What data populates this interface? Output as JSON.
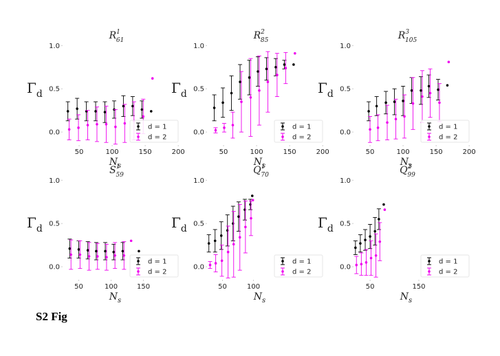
{
  "caption": "S2 Fig",
  "chart_data": [
    {
      "type": "errorbar",
      "title": "R",
      "title_sup": "1",
      "title_sub": "61",
      "ylabel": "Γ",
      "ylabel_sub": "d",
      "xlabel": "N",
      "xlabel_sub": "s",
      "xlim": [
        25,
        205
      ],
      "ylim": [
        -0.15,
        1.05
      ],
      "xticks": [
        50,
        100,
        150,
        200
      ],
      "yticks": [
        {
          "value": 0,
          "label": "0.0"
        },
        {
          "value": 0.5,
          "label": "0.5"
        },
        {
          "value": 1,
          "label": "1.0"
        }
      ],
      "legend": "lower right",
      "series": [
        {
          "name": "d = 1",
          "color": "#000000",
          "x": [
            33,
            47,
            61,
            75,
            89,
            103,
            117,
            131,
            145,
            159
          ],
          "values": [
            0.24,
            0.27,
            0.24,
            0.24,
            0.23,
            0.26,
            0.3,
            0.3,
            0.26,
            0.24
          ],
          "errors": [
            0.11,
            0.12,
            0.11,
            0.11,
            0.12,
            0.1,
            0.12,
            0.11,
            0.1,
            null
          ]
        },
        {
          "name": "d = 2",
          "color": "#ee00ee",
          "x": [
            35,
            49,
            63,
            77,
            91,
            105,
            119,
            133,
            147,
            161
          ],
          "values": [
            0.03,
            0.05,
            0.08,
            0.09,
            0.09,
            0.06,
            0.1,
            0.13,
            0.18,
            0.62
          ],
          "errors": [
            0.12,
            0.15,
            0.17,
            0.2,
            0.21,
            0.2,
            0.22,
            0.22,
            0.2,
            null
          ]
        }
      ]
    },
    {
      "type": "errorbar",
      "title": "R",
      "title_sup": "2",
      "title_sub": "85",
      "ylabel": "Γ",
      "ylabel_sub": "d",
      "xlabel": "N",
      "xlabel_sub": "s",
      "xlim": [
        25,
        205
      ],
      "ylim": [
        -0.15,
        1.05
      ],
      "xticks": [
        50,
        100,
        150,
        200
      ],
      "yticks": [
        {
          "value": 0,
          "label": "0.0"
        },
        {
          "value": 0.5,
          "label": "0.5"
        },
        {
          "value": 1,
          "label": "1.0"
        }
      ],
      "legend": "lower right",
      "series": [
        {
          "name": "d = 1",
          "color": "#000000",
          "x": [
            36,
            49,
            62,
            75,
            89,
            102,
            115,
            129,
            142,
            156
          ],
          "values": [
            0.28,
            0.34,
            0.45,
            0.58,
            0.63,
            0.7,
            0.73,
            0.75,
            0.78,
            0.78
          ],
          "errors": [
            0.15,
            0.17,
            0.2,
            0.2,
            0.2,
            0.17,
            0.13,
            0.1,
            0.05,
            null
          ]
        },
        {
          "name": "d = 2",
          "color": "#ee00ee",
          "x": [
            38,
            51,
            64,
            77,
            91,
            104,
            117,
            131,
            144,
            158
          ],
          "values": [
            0.02,
            0.05,
            0.08,
            0.35,
            0.4,
            0.48,
            0.58,
            0.66,
            0.74,
            0.91
          ],
          "errors": [
            0.03,
            0.05,
            0.15,
            0.35,
            0.45,
            0.4,
            0.35,
            0.25,
            0.18,
            null
          ]
        }
      ]
    },
    {
      "type": "errorbar",
      "title": "R",
      "title_sup": "3",
      "title_sub": "105",
      "ylabel": "Γ",
      "ylabel_sub": "d",
      "xlabel": "N",
      "xlabel_sub": "s",
      "xlim": [
        25,
        205
      ],
      "ylim": [
        -0.15,
        1.05
      ],
      "xticks": [
        50,
        100,
        150,
        200
      ],
      "yticks": [
        {
          "value": 0,
          "label": "0.0"
        },
        {
          "value": 0.5,
          "label": "0.5"
        },
        {
          "value": 1,
          "label": "1.0"
        }
      ],
      "legend": "lower right",
      "series": [
        {
          "name": "d = 1",
          "color": "#000000",
          "x": [
            48,
            60,
            74,
            87,
            100,
            113,
            127,
            139,
            153,
            167
          ],
          "values": [
            0.24,
            0.3,
            0.34,
            0.35,
            0.36,
            0.48,
            0.48,
            0.53,
            0.49,
            0.54
          ],
          "errors": [
            0.11,
            0.11,
            0.13,
            0.15,
            0.17,
            0.15,
            0.16,
            0.13,
            0.12,
            null
          ]
        },
        {
          "name": "d = 2",
          "color": "#ee00ee",
          "x": [
            50,
            62,
            76,
            89,
            102,
            115,
            129,
            141,
            155,
            169
          ],
          "values": [
            0.03,
            0.05,
            0.11,
            0.15,
            0.18,
            0.33,
            0.41,
            0.45,
            0.34,
            0.81
          ],
          "errors": [
            0.15,
            0.15,
            0.2,
            0.23,
            0.25,
            0.3,
            0.3,
            0.28,
            0.22,
            null
          ]
        }
      ]
    },
    {
      "type": "errorbar",
      "title": "S",
      "title_sup": "1",
      "title_sub": "59",
      "ylabel": "Γ",
      "ylabel_sub": "d",
      "xlabel": "N",
      "xlabel_sub": "s",
      "xlim": [
        25,
        209
      ],
      "ylim": [
        -0.15,
        1.05
      ],
      "xticks": [
        50,
        100,
        150
      ],
      "yticks": [
        {
          "value": 0,
          "label": "0.0"
        },
        {
          "value": 0.5,
          "label": "0.5"
        },
        {
          "value": 1,
          "label": "1.0"
        }
      ],
      "legend": "lower right",
      "series": [
        {
          "name": "d = 1",
          "color": "#000000",
          "x": [
            36,
            50,
            64,
            77,
            91,
            104,
            118,
            143
          ],
          "values": [
            0.21,
            0.2,
            0.19,
            0.18,
            0.18,
            0.17,
            0.18,
            0.18
          ],
          "errors": [
            0.11,
            0.1,
            0.1,
            0.1,
            0.1,
            0.09,
            0.1,
            null
          ]
        },
        {
          "name": "d = 2",
          "color": "#ee00ee",
          "x": [
            38,
            52,
            66,
            79,
            93,
            106,
            120,
            131
          ],
          "values": [
            0.14,
            0.14,
            0.12,
            0.12,
            0.11,
            0.13,
            0.13,
            0.3
          ],
          "errors": [
            0.17,
            0.16,
            0.16,
            0.15,
            0.15,
            0.15,
            0.16,
            null
          ]
        }
      ]
    },
    {
      "type": "errorbar",
      "title": "Q",
      "title_sup": "1",
      "title_sub": "70",
      "ylabel": "Γ",
      "ylabel_sub": "d",
      "xlabel": "N",
      "xlabel_sub": "s",
      "xlim": [
        25,
        217
      ],
      "ylim": [
        -0.15,
        1.05
      ],
      "xticks": [
        50,
        100
      ],
      "yticks": [
        {
          "value": 0,
          "label": "0.0"
        },
        {
          "value": 0.5,
          "label": "0.5"
        },
        {
          "value": 1,
          "label": "1.0"
        }
      ],
      "legend": "lower right",
      "series": [
        {
          "name": "d = 1",
          "color": "#000000",
          "x": [
            28,
            38,
            48,
            58,
            67,
            76,
            86,
            95,
            98
          ],
          "values": [
            0.27,
            0.3,
            0.36,
            0.42,
            0.5,
            0.58,
            0.66,
            0.72,
            0.82
          ],
          "errors": [
            0.1,
            0.13,
            0.16,
            0.18,
            0.2,
            0.17,
            0.12,
            0.06,
            null
          ]
        },
        {
          "name": "d = 2",
          "color": "#ee00ee",
          "x": [
            30,
            39,
            49,
            59,
            68,
            78,
            87,
            96,
            99
          ],
          "values": [
            0.02,
            0.04,
            0.07,
            0.17,
            0.26,
            0.34,
            0.46,
            0.56,
            0.77
          ],
          "errors": [
            0.04,
            0.1,
            0.18,
            0.3,
            0.38,
            0.38,
            0.3,
            0.2,
            null
          ]
        }
      ]
    },
    {
      "type": "errorbar",
      "title": "Q",
      "title_sup": "2",
      "title_sub": "99",
      "ylabel": "Γ",
      "ylabel_sub": "d",
      "xlabel": "N",
      "xlabel_sub": "s",
      "xlim": [
        16,
        260
      ],
      "ylim": [
        -0.15,
        1.05
      ],
      "xticks": [
        50,
        150
      ],
      "yticks": [
        {
          "value": 0,
          "label": "0.0"
        },
        {
          "value": 0.5,
          "label": "0.5"
        },
        {
          "value": 1,
          "label": "1.0"
        }
      ],
      "legend": "lower right",
      "series": [
        {
          "name": "d = 1",
          "color": "#000000",
          "x": [
            20,
            30,
            40,
            50,
            60,
            68,
            78
          ],
          "values": [
            0.22,
            0.27,
            0.31,
            0.35,
            0.41,
            0.55,
            0.72
          ],
          "errors": [
            0.08,
            0.1,
            0.12,
            0.14,
            0.16,
            0.12,
            null
          ]
        },
        {
          "name": "d = 2",
          "color": "#ee00ee",
          "x": [
            22,
            32,
            42,
            52,
            62,
            70,
            80
          ],
          "values": [
            0.02,
            0.03,
            0.05,
            0.1,
            0.13,
            0.29,
            0.66
          ],
          "errors": [
            0.1,
            0.13,
            0.15,
            0.2,
            0.25,
            0.22,
            null
          ]
        }
      ]
    }
  ]
}
